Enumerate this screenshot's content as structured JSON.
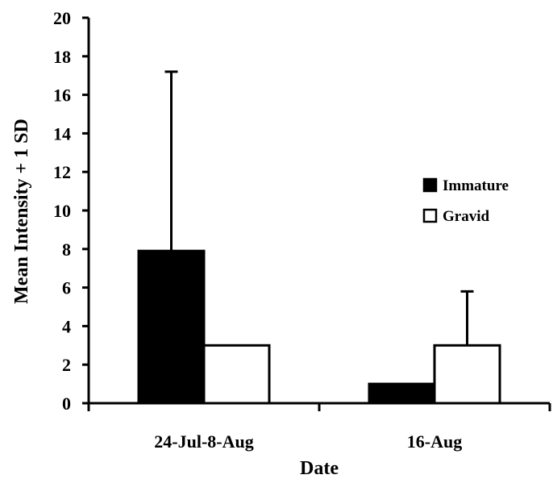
{
  "chart_data": {
    "type": "bar",
    "title": "",
    "xlabel": "Date",
    "ylabel": "Mean Intensity + 1 SD",
    "categories": [
      "24-Jul-8-Aug",
      "16-Aug"
    ],
    "series": [
      {
        "name": "Immature",
        "values": [
          7.9,
          1.0
        ],
        "sd": [
          9.3,
          0.0
        ],
        "fill": "#000000"
      },
      {
        "name": "Gravid",
        "values": [
          3.0,
          3.0
        ],
        "sd": [
          0.0,
          2.8
        ],
        "fill": "#ffffff"
      }
    ],
    "ylim": [
      0,
      20
    ],
    "yticks": [
      "0",
      "2",
      "4",
      "6",
      "8",
      "10",
      "12",
      "14",
      "16",
      "18",
      "20"
    ],
    "grid": false,
    "legend_position": "right"
  }
}
